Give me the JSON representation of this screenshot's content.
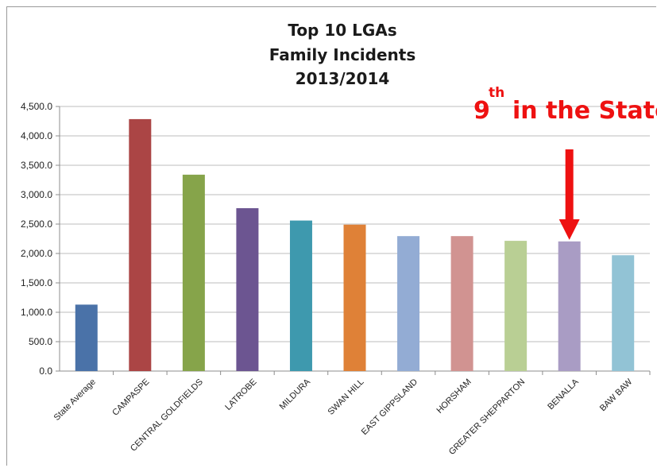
{
  "chart_data": {
    "type": "bar",
    "title_lines": [
      "Top 10 LGAs",
      "Family Incidents",
      "2013/2014"
    ],
    "categories": [
      "State Average",
      "CAMPASPE",
      "CENTRAL GOLDFIELDS",
      "LATROBE",
      "MILDURA",
      "SWAN HILL",
      "EAST GIPPSLAND",
      "HORSHAM",
      "GREATER SHEPPARTON",
      "BENALLA",
      "BAW BAW"
    ],
    "values": [
      1130,
      4285,
      3340,
      2770,
      2560,
      2490,
      2295,
      2295,
      2215,
      2205,
      1970
    ],
    "bar_colors": [
      "#4a72a8",
      "#ab4545",
      "#86a44a",
      "#6c5591",
      "#3e99ae",
      "#df8137",
      "#93acd4",
      "#d19391",
      "#b9cf94",
      "#a99cc4",
      "#92c3d5"
    ],
    "ylim": [
      0,
      4500
    ],
    "yticks": [
      "0.0",
      "500.0",
      "1,000.0",
      "1,500.0",
      "2,000.0",
      "2,500.0",
      "3,000.0",
      "3,500.0",
      "4,000.0",
      "4,500.0"
    ],
    "xlabel": "",
    "ylabel": "",
    "grid": true,
    "legend": false,
    "annotation": {
      "number": "9",
      "superscript": "th",
      "text": "in the State",
      "color": "#ee1111",
      "target_category": "BENALLA"
    }
  }
}
